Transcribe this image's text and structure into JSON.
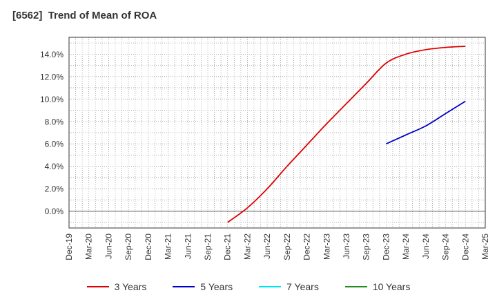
{
  "chart_data": {
    "type": "line",
    "title": "[6562]  Trend of Mean of ROA",
    "xlabel": "",
    "ylabel": "",
    "x_ticks": [
      "Dec-19",
      "Mar-20",
      "Jun-20",
      "Sep-20",
      "Dec-20",
      "Mar-21",
      "Jun-21",
      "Sep-21",
      "Dec-21",
      "Mar-22",
      "Jun-22",
      "Sep-22",
      "Dec-22",
      "Mar-23",
      "Jun-23",
      "Sep-23",
      "Dec-23",
      "Mar-24",
      "Jun-24",
      "Sep-24",
      "Dec-24",
      "Mar-25"
    ],
    "y_ticks": [
      "0.0%",
      "2.0%",
      "4.0%",
      "6.0%",
      "8.0%",
      "10.0%",
      "12.0%",
      "14.0%"
    ],
    "ylim": [
      -1.5,
      15.5
    ],
    "grid": true,
    "legend_position": "bottom",
    "series": [
      {
        "name": "3 Years",
        "color": "#dd0000",
        "x": [
          "Dec-21",
          "Mar-22",
          "Jun-22",
          "Sep-22",
          "Dec-22",
          "Mar-23",
          "Jun-23",
          "Sep-23",
          "Dec-23",
          "Mar-24",
          "Jun-24",
          "Sep-24",
          "Dec-24"
        ],
        "values": [
          -1.0,
          0.3,
          2.0,
          4.0,
          5.9,
          7.8,
          9.6,
          11.4,
          13.2,
          14.0,
          14.4,
          14.6,
          14.7
        ]
      },
      {
        "name": "5 Years",
        "color": "#0000cc",
        "x": [
          "Dec-23",
          "Mar-24",
          "Jun-24",
          "Sep-24",
          "Dec-24"
        ],
        "values": [
          6.0,
          6.8,
          7.6,
          8.7,
          9.8
        ]
      },
      {
        "name": "7 Years",
        "color": "#00e5ee",
        "x": [],
        "values": []
      },
      {
        "name": "10 Years",
        "color": "#228b22",
        "x": [],
        "values": []
      }
    ]
  }
}
